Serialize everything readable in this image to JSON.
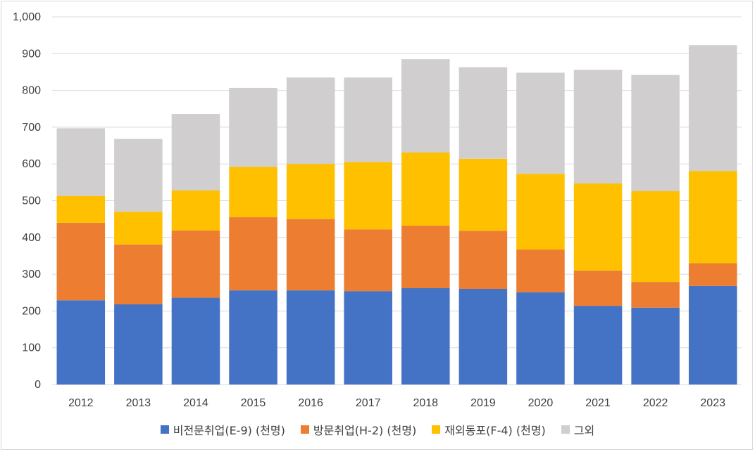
{
  "chart_data": {
    "type": "bar",
    "stacked": true,
    "categories": [
      "2012",
      "2013",
      "2014",
      "2015",
      "2016",
      "2017",
      "2018",
      "2019",
      "2020",
      "2021",
      "2022",
      "2023"
    ],
    "series": [
      {
        "name": "비전문취업(E-9) (천명)",
        "color": "#4472C4",
        "values": [
          229,
          218,
          236,
          256,
          256,
          254,
          262,
          260,
          251,
          214,
          209,
          268
        ]
      },
      {
        "name": "방문취업(H-2) (천명)",
        "color": "#ED7D31",
        "values": [
          211,
          163,
          183,
          199,
          194,
          168,
          170,
          158,
          116,
          96,
          70,
          62
        ]
      },
      {
        "name": "재외동포(F-4) (천명)",
        "color": "#FFC000",
        "values": [
          73,
          89,
          109,
          137,
          150,
          183,
          199,
          196,
          206,
          237,
          247,
          251
        ]
      },
      {
        "name": "그외",
        "color": "#D0CECE",
        "values": [
          184,
          198,
          208,
          215,
          235,
          230,
          254,
          249,
          275,
          309,
          316,
          342
        ]
      }
    ],
    "ylim": [
      0,
      1000
    ],
    "yticks": [
      "0",
      "100",
      "200",
      "300",
      "400",
      "500",
      "600",
      "700",
      "800",
      "900",
      "1,000"
    ],
    "grid": true,
    "legend": "bottom"
  }
}
